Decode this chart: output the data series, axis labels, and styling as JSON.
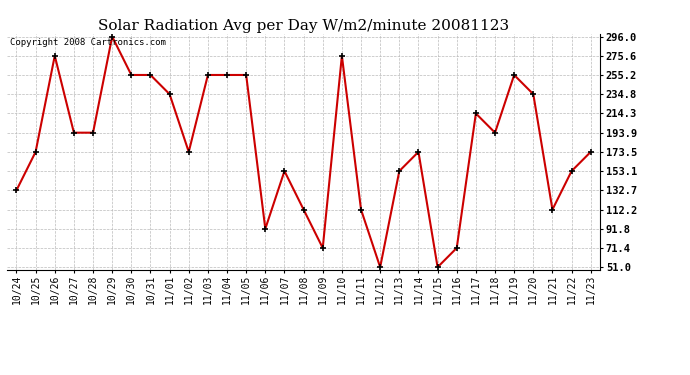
{
  "title": "Solar Radiation Avg per Day W/m2/minute 20081123",
  "copyright_text": "Copyright 2008 Cartronics.com",
  "x_labels": [
    "10/24",
    "10/25",
    "10/26",
    "10/27",
    "10/28",
    "10/29",
    "10/30",
    "10/31",
    "11/01",
    "11/02",
    "11/03",
    "11/04",
    "11/05",
    "11/06",
    "11/07",
    "11/08",
    "11/09",
    "11/10",
    "11/11",
    "11/12",
    "11/13",
    "11/14",
    "11/15",
    "11/16",
    "11/17",
    "11/18",
    "11/19",
    "11/20",
    "11/21",
    "11/22",
    "11/23"
  ],
  "y_values": [
    132.7,
    173.5,
    275.6,
    193.9,
    193.9,
    296.0,
    255.2,
    255.2,
    234.8,
    173.5,
    255.2,
    255.2,
    255.2,
    91.8,
    153.1,
    112.2,
    71.4,
    275.6,
    112.2,
    51.0,
    153.1,
    173.5,
    51.0,
    71.4,
    214.3,
    193.9,
    255.2,
    234.8,
    112.2,
    153.1,
    173.5
  ],
  "y_ticks": [
    51.0,
    71.4,
    91.8,
    112.2,
    132.7,
    153.1,
    173.5,
    193.9,
    214.3,
    234.8,
    255.2,
    275.6,
    296.0
  ],
  "y_min": 51.0,
  "y_max": 296.0,
  "line_color": "#cc0000",
  "marker_color": "#000000",
  "bg_color": "#ffffff",
  "plot_bg_color": "#ffffff",
  "grid_color": "#bbbbbb",
  "title_fontsize": 11,
  "copyright_fontsize": 6.5,
  "tick_fontsize": 7,
  "ytick_fontsize": 7.5
}
